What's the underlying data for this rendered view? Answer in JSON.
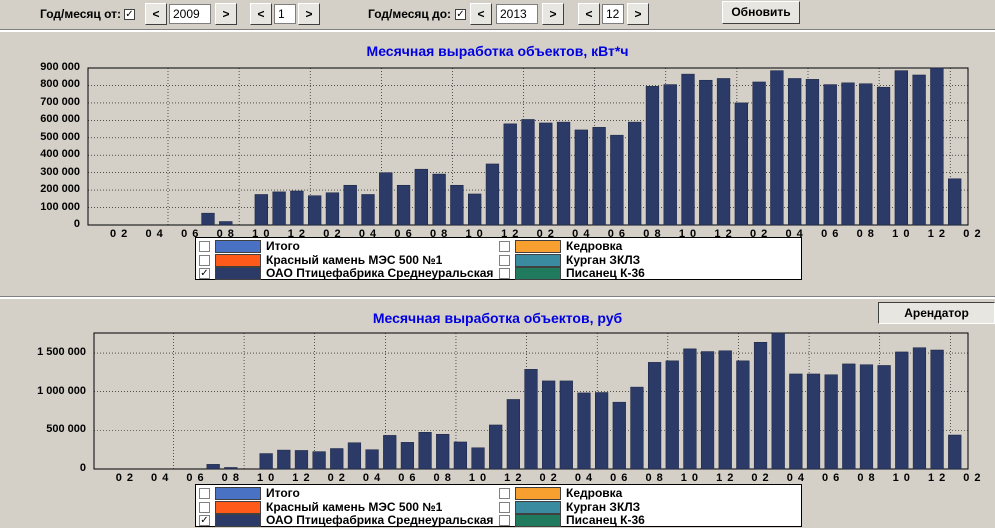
{
  "toolbar": {
    "from_label": "Год/месяц от:",
    "from_checked": "✓",
    "from_year": "2009",
    "from_month": "1",
    "to_label": "Год/месяц до:",
    "to_checked": "✓",
    "to_year": "2013",
    "to_month": "12",
    "prev": "<",
    "next": ">",
    "refresh_label": "Обновить"
  },
  "top_chart": {
    "title": "Месячная выработка объектов, кВт*ч",
    "y_ticks": [
      "900 000",
      "800 000",
      "700 000",
      "600 000",
      "500 000",
      "400 000",
      "300 000",
      "200 000",
      "100 000",
      "0"
    ],
    "x_ticks": [
      "0 2",
      "0 4",
      "0 6",
      "0 8",
      "1 0",
      "1 2",
      "0 2",
      "0 4",
      "0 6",
      "0 8",
      "1 0",
      "1 2",
      "0 2",
      "0 4",
      "0 6",
      "0 8",
      "1 0",
      "1 2",
      "0 2",
      "0 4",
      "0 6",
      "0 8",
      "1 0",
      "1 2",
      "0 2"
    ]
  },
  "bottom_chart": {
    "title": "Месячная выработка объектов, руб",
    "tenant_label": "Арендатор",
    "y_ticks": [
      "1 500 000",
      "1 000 000",
      "500 000",
      "0"
    ],
    "x_ticks": [
      "0 2",
      "0 4",
      "0 6",
      "0 8",
      "1 0",
      "1 2",
      "0 2",
      "0 4",
      "0 6",
      "0 8",
      "1 0",
      "1 2",
      "0 2",
      "0 4",
      "0 6",
      "0 8",
      "1 0",
      "1 2",
      "0 2",
      "0 4",
      "0 6",
      "0 8",
      "1 0",
      "1 2",
      "0 2"
    ]
  },
  "legend": {
    "items": [
      {
        "label": "Итого",
        "color": "#4a72c4",
        "checked": ""
      },
      {
        "label": "Красный камень МЭС 500 №1",
        "color": "#ff5a1a",
        "checked": ""
      },
      {
        "label": "ОАО  Птицефабрика Среднеуральская",
        "color": "#2b3a66",
        "checked": "✓"
      },
      {
        "label": "Кедровка",
        "color": "#f7a030",
        "checked": ""
      },
      {
        "label": "Курган ЗКЛЗ",
        "color": "#3a8aa0",
        "checked": ""
      },
      {
        "label": "Писанец К-36",
        "color": "#1f7a5e",
        "checked": ""
      }
    ]
  },
  "chart_data": [
    {
      "type": "bar",
      "title": "Месячная выработка объектов, кВт*ч",
      "series": [
        {
          "name": "ОАО  Птицефабрика Среднеуральская",
          "values": [
            0,
            0,
            0,
            0,
            0,
            0,
            68000,
            20000,
            0,
            175000,
            190000,
            195000,
            168000,
            185000,
            228000,
            175000,
            300000,
            228000,
            320000,
            292000,
            228000,
            178000,
            350000,
            580000,
            605000,
            585000,
            590000,
            545000,
            560000,
            515000,
            590000,
            795000,
            805000,
            865000,
            830000,
            840000,
            700000,
            820000,
            885000,
            840000,
            835000,
            805000,
            815000,
            810000,
            790000,
            885000,
            860000,
            900000,
            265000
          ]
        }
      ],
      "ylim": [
        0,
        900000
      ],
      "color": "#2b3a66"
    },
    {
      "type": "bar",
      "title": "Месячная выработка объектов, руб",
      "series": [
        {
          "name": "ОАО  Птицефабрика Среднеуральская",
          "values": [
            0,
            0,
            0,
            0,
            0,
            0,
            60000,
            20000,
            0,
            200000,
            245000,
            240000,
            225000,
            265000,
            340000,
            250000,
            435000,
            345000,
            475000,
            450000,
            350000,
            275000,
            570000,
            900000,
            1290000,
            1140000,
            1140000,
            985000,
            990000,
            865000,
            1060000,
            1380000,
            1400000,
            1555000,
            1520000,
            1530000,
            1400000,
            1640000,
            1760000,
            1230000,
            1230000,
            1220000,
            1360000,
            1350000,
            1340000,
            1515000,
            1570000,
            1540000,
            440000
          ]
        }
      ],
      "ylim": [
        0,
        1760000
      ],
      "color": "#2b3a66"
    }
  ]
}
